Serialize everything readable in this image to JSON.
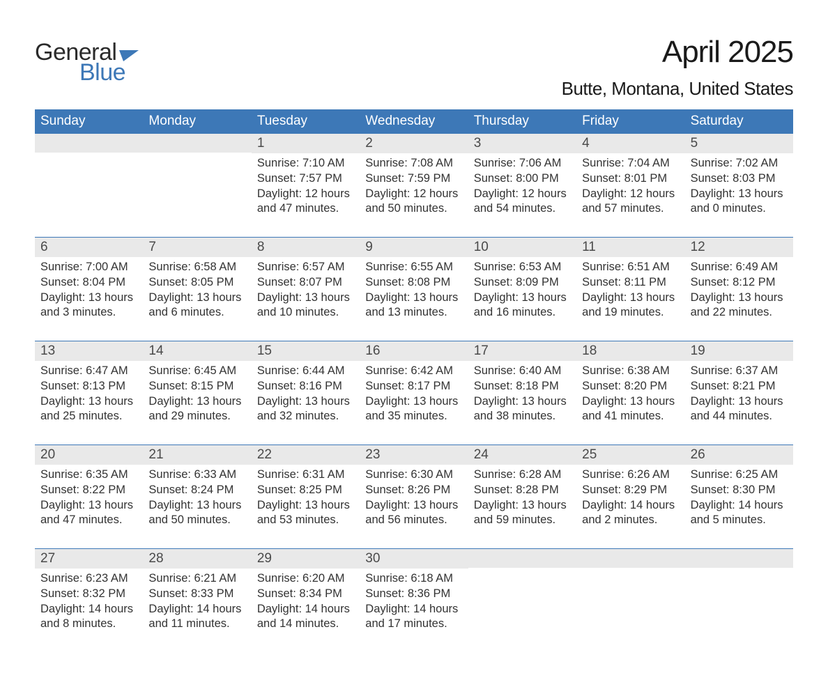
{
  "logo": {
    "word1": "General",
    "word2": "Blue",
    "flag_color": "#3d78b7"
  },
  "title": "April 2025",
  "location": "Butte, Montana, United States",
  "colors": {
    "header_bg": "#3d78b7",
    "header_text": "#ffffff",
    "daynum_bg": "#e9e9e9",
    "week_border": "#3d78b7",
    "body_text": "#333333",
    "page_bg": "#ffffff"
  },
  "weekdays": [
    "Sunday",
    "Monday",
    "Tuesday",
    "Wednesday",
    "Thursday",
    "Friday",
    "Saturday"
  ],
  "labels": {
    "sunrise": "Sunrise:",
    "sunset": "Sunset:",
    "daylight": "Daylight:"
  },
  "weeks": [
    [
      {},
      {},
      {
        "num": "1",
        "sunrise": "7:10 AM",
        "sunset": "7:57 PM",
        "daylight": "12 hours and 47 minutes."
      },
      {
        "num": "2",
        "sunrise": "7:08 AM",
        "sunset": "7:59 PM",
        "daylight": "12 hours and 50 minutes."
      },
      {
        "num": "3",
        "sunrise": "7:06 AM",
        "sunset": "8:00 PM",
        "daylight": "12 hours and 54 minutes."
      },
      {
        "num": "4",
        "sunrise": "7:04 AM",
        "sunset": "8:01 PM",
        "daylight": "12 hours and 57 minutes."
      },
      {
        "num": "5",
        "sunrise": "7:02 AM",
        "sunset": "8:03 PM",
        "daylight": "13 hours and 0 minutes."
      }
    ],
    [
      {
        "num": "6",
        "sunrise": "7:00 AM",
        "sunset": "8:04 PM",
        "daylight": "13 hours and 3 minutes."
      },
      {
        "num": "7",
        "sunrise": "6:58 AM",
        "sunset": "8:05 PM",
        "daylight": "13 hours and 6 minutes."
      },
      {
        "num": "8",
        "sunrise": "6:57 AM",
        "sunset": "8:07 PM",
        "daylight": "13 hours and 10 minutes."
      },
      {
        "num": "9",
        "sunrise": "6:55 AM",
        "sunset": "8:08 PM",
        "daylight": "13 hours and 13 minutes."
      },
      {
        "num": "10",
        "sunrise": "6:53 AM",
        "sunset": "8:09 PM",
        "daylight": "13 hours and 16 minutes."
      },
      {
        "num": "11",
        "sunrise": "6:51 AM",
        "sunset": "8:11 PM",
        "daylight": "13 hours and 19 minutes."
      },
      {
        "num": "12",
        "sunrise": "6:49 AM",
        "sunset": "8:12 PM",
        "daylight": "13 hours and 22 minutes."
      }
    ],
    [
      {
        "num": "13",
        "sunrise": "6:47 AM",
        "sunset": "8:13 PM",
        "daylight": "13 hours and 25 minutes."
      },
      {
        "num": "14",
        "sunrise": "6:45 AM",
        "sunset": "8:15 PM",
        "daylight": "13 hours and 29 minutes."
      },
      {
        "num": "15",
        "sunrise": "6:44 AM",
        "sunset": "8:16 PM",
        "daylight": "13 hours and 32 minutes."
      },
      {
        "num": "16",
        "sunrise": "6:42 AM",
        "sunset": "8:17 PM",
        "daylight": "13 hours and 35 minutes."
      },
      {
        "num": "17",
        "sunrise": "6:40 AM",
        "sunset": "8:18 PM",
        "daylight": "13 hours and 38 minutes."
      },
      {
        "num": "18",
        "sunrise": "6:38 AM",
        "sunset": "8:20 PM",
        "daylight": "13 hours and 41 minutes."
      },
      {
        "num": "19",
        "sunrise": "6:37 AM",
        "sunset": "8:21 PM",
        "daylight": "13 hours and 44 minutes."
      }
    ],
    [
      {
        "num": "20",
        "sunrise": "6:35 AM",
        "sunset": "8:22 PM",
        "daylight": "13 hours and 47 minutes."
      },
      {
        "num": "21",
        "sunrise": "6:33 AM",
        "sunset": "8:24 PM",
        "daylight": "13 hours and 50 minutes."
      },
      {
        "num": "22",
        "sunrise": "6:31 AM",
        "sunset": "8:25 PM",
        "daylight": "13 hours and 53 minutes."
      },
      {
        "num": "23",
        "sunrise": "6:30 AM",
        "sunset": "8:26 PM",
        "daylight": "13 hours and 56 minutes."
      },
      {
        "num": "24",
        "sunrise": "6:28 AM",
        "sunset": "8:28 PM",
        "daylight": "13 hours and 59 minutes."
      },
      {
        "num": "25",
        "sunrise": "6:26 AM",
        "sunset": "8:29 PM",
        "daylight": "14 hours and 2 minutes."
      },
      {
        "num": "26",
        "sunrise": "6:25 AM",
        "sunset": "8:30 PM",
        "daylight": "14 hours and 5 minutes."
      }
    ],
    [
      {
        "num": "27",
        "sunrise": "6:23 AM",
        "sunset": "8:32 PM",
        "daylight": "14 hours and 8 minutes."
      },
      {
        "num": "28",
        "sunrise": "6:21 AM",
        "sunset": "8:33 PM",
        "daylight": "14 hours and 11 minutes."
      },
      {
        "num": "29",
        "sunrise": "6:20 AM",
        "sunset": "8:34 PM",
        "daylight": "14 hours and 14 minutes."
      },
      {
        "num": "30",
        "sunrise": "6:18 AM",
        "sunset": "8:36 PM",
        "daylight": "14 hours and 17 minutes."
      },
      {},
      {},
      {}
    ]
  ]
}
